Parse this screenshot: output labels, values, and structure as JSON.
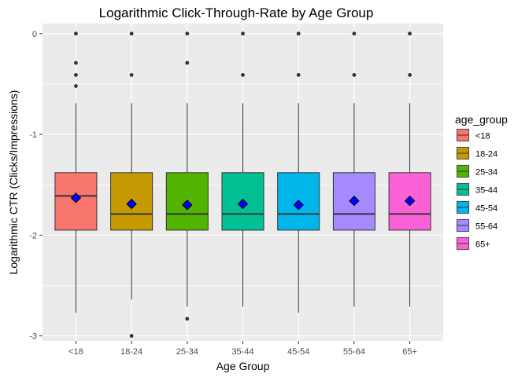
{
  "chart_data": {
    "type": "box",
    "title": "Logarithmic Click-Through-Rate by Age Group",
    "xlabel": "Age Group",
    "ylabel": "Logarithmic CTR (Clicks/Impressions)",
    "ylim": [
      -3.05,
      0.1
    ],
    "y_ticks": [
      0,
      -1,
      -2,
      -3
    ],
    "y_tick_labels": [
      "0",
      "-1",
      "-2",
      "-3"
    ],
    "grid": true,
    "legend": {
      "title": "age_group",
      "position": "right"
    },
    "categories": [
      "<18",
      "18-24",
      "25-34",
      "35-44",
      "45-54",
      "55-64",
      "65+"
    ],
    "colors": [
      "#F8766D",
      "#C49A00",
      "#53B400",
      "#00C094",
      "#00B6EB",
      "#A58AFF",
      "#FB61D7"
    ],
    "mean_marker_color": "#0000FF",
    "series": [
      {
        "category": "<18",
        "whisker_low": -2.77,
        "q1": -1.95,
        "median": -1.61,
        "q3": -1.38,
        "whisker_high": -0.69,
        "mean": -1.63,
        "outliers": [
          0,
          -0.29,
          -0.41,
          -0.52
        ]
      },
      {
        "category": "18-24",
        "whisker_low": -2.64,
        "q1": -1.95,
        "median": -1.79,
        "q3": -1.38,
        "whisker_high": -0.69,
        "mean": -1.69,
        "outliers": [
          0,
          -0.41,
          -3.0
        ]
      },
      {
        "category": "25-34",
        "whisker_low": -2.71,
        "q1": -1.95,
        "median": -1.79,
        "q3": -1.38,
        "whisker_high": -0.69,
        "mean": -1.7,
        "outliers": [
          0,
          -0.29,
          -2.83
        ]
      },
      {
        "category": "35-44",
        "whisker_low": -2.71,
        "q1": -1.95,
        "median": -1.79,
        "q3": -1.38,
        "whisker_high": -0.69,
        "mean": -1.69,
        "outliers": [
          0,
          -0.41
        ]
      },
      {
        "category": "45-54",
        "whisker_low": -2.77,
        "q1": -1.95,
        "median": -1.79,
        "q3": -1.38,
        "whisker_high": -0.69,
        "mean": -1.7,
        "outliers": [
          0,
          -0.41
        ]
      },
      {
        "category": "55-64",
        "whisker_low": -2.71,
        "q1": -1.95,
        "median": -1.79,
        "q3": -1.38,
        "whisker_high": -0.69,
        "mean": -1.66,
        "outliers": [
          0,
          -0.41
        ]
      },
      {
        "category": "65+",
        "whisker_low": -2.71,
        "q1": -1.95,
        "median": -1.79,
        "q3": -1.38,
        "whisker_high": -0.69,
        "mean": -1.66,
        "outliers": [
          0,
          -0.41
        ]
      }
    ]
  }
}
